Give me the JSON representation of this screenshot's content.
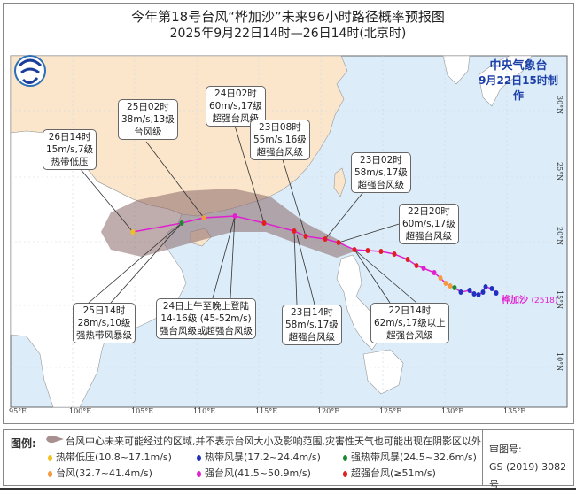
{
  "title": "今年第18号台风“桦加沙”未来96小时路径概率预报图",
  "subtitle": "2025年9月22日14时—26日14时(北京时)",
  "agency": {
    "name": "中央气象台",
    "made": "9月22日15时制作",
    "color": "#1c3fa8"
  },
  "typhoon": {
    "name": "桦加沙",
    "code": "(2518)",
    "color": "#e020d0"
  },
  "lon_labels": [
    "95°E",
    "100°E",
    "105°E",
    "110°E",
    "115°E",
    "120°E",
    "125°E",
    "130°E",
    "135°E"
  ],
  "lat_labels": [
    "30°N",
    "25°N",
    "20°N",
    "15°N",
    "10°N"
  ],
  "forecast_labels": [
    {
      "time": "26日14时",
      "wind": "15m/s,7级",
      "level": "热带低压"
    },
    {
      "time": "25日02时",
      "wind": "38m/s,13级",
      "level": "台风级"
    },
    {
      "time": "24日02时",
      "wind": "60m/s,17级",
      "level": "超强台风级"
    },
    {
      "time": "23日08时",
      "wind": "55m/s,16级",
      "level": "超强台风级"
    },
    {
      "time": "23日02时",
      "wind": "58m/s,17级",
      "level": "超强台风级"
    },
    {
      "time": "22日20时",
      "wind": "60m/s,17级",
      "level": "超强台风级"
    },
    {
      "time": "22日14时",
      "wind": "62m/s,17级以上",
      "level": "超强台风级"
    },
    {
      "time": "23日14时",
      "wind": "58m/s,17级",
      "level": "超强台风级"
    },
    {
      "time": "24日上午至晚上登陆",
      "wind": "14-16级 (45-52m/s)",
      "level": "强台风级或超强台风级"
    },
    {
      "time": "25日14时",
      "wind": "28m/s,10级",
      "level": "强热带风暴级"
    }
  ],
  "legend": {
    "label": "图例:",
    "cone_text": "台风中心未来可能经过的区域,并不表示台风大小及影响范围,灾害性天气也可能出现在阴影区以外",
    "items": [
      {
        "text": "热带低压(10.8~17.1m/s)",
        "color": "#f0c020"
      },
      {
        "text": "热带风暴(17.2~24.4m/s)",
        "color": "#2030c0"
      },
      {
        "text": "强热带风暴(24.5~32.6m/s)",
        "color": "#1a8a30"
      },
      {
        "text": "台风(32.7~41.4m/s)",
        "color": "#f39a40"
      },
      {
        "text": "强台风(41.5~50.9m/s)",
        "color": "#e020d0"
      },
      {
        "text": "超强台风(≥51m/s)",
        "color": "#e02020"
      }
    ],
    "review_label": "审图号:",
    "review_no": "GS (2019) 3082号"
  }
}
